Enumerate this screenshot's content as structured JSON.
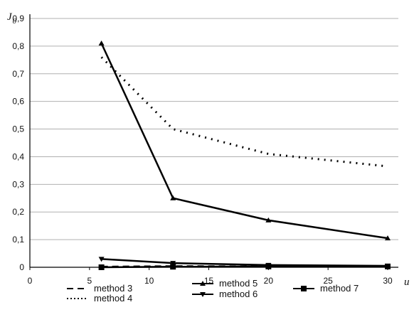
{
  "chart_data": {
    "type": "line",
    "title": "",
    "ylabel": {
      "symbol": "J",
      "subscript": "0"
    },
    "xlabel": "u",
    "xlim": [
      0,
      30
    ],
    "ylim": [
      0,
      0.9
    ],
    "xticks": [
      "0",
      "5",
      "10",
      "15",
      "20",
      "25",
      "30"
    ],
    "yticks": [
      "0",
      "0,1",
      "0,2",
      "0,3",
      "0,4",
      "0,5",
      "0,6",
      "0,7",
      "0,8",
      "0,9"
    ],
    "grid": "horizontal",
    "legend_position": "bottom",
    "series": [
      {
        "name": "method 3",
        "style": "dashed",
        "marker": "none",
        "x": [
          6,
          12,
          20,
          30
        ],
        "y": [
          0.002,
          0.004,
          0.003,
          0.002
        ]
      },
      {
        "name": "method 4",
        "style": "dotted",
        "marker": "none",
        "x": [
          6,
          12,
          20,
          30
        ],
        "y": [
          0.76,
          0.5,
          0.41,
          0.365
        ]
      },
      {
        "name": "method 5",
        "style": "solid",
        "marker": "triangle",
        "x": [
          6,
          12,
          20,
          30
        ],
        "y": [
          0.81,
          0.25,
          0.17,
          0.105
        ]
      },
      {
        "name": "method 6",
        "style": "solid",
        "marker": "triangle-down",
        "x": [
          6,
          12,
          20,
          30
        ],
        "y": [
          0.03,
          0.015,
          0.008,
          0.005
        ]
      },
      {
        "name": "method 7",
        "style": "solid",
        "marker": "square",
        "x": [
          6,
          12,
          20,
          30
        ],
        "y": [
          0,
          0.002,
          0.003,
          0.003
        ]
      }
    ]
  },
  "colors": {
    "line": "#000000",
    "grid": "#b0b0b0",
    "axis": "#000000"
  }
}
